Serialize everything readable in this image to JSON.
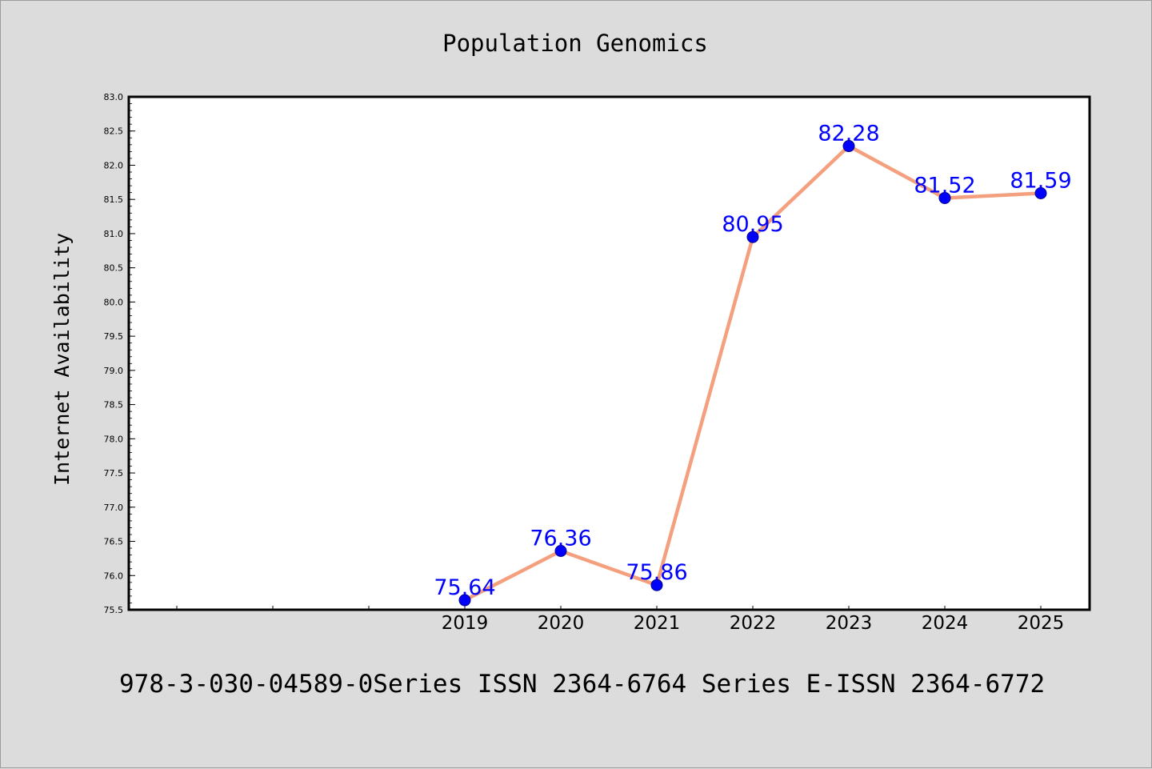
{
  "chart_data": {
    "type": "line",
    "title": "Population Genomics",
    "xlabel": "",
    "ylabel": "Internet Availability",
    "categories": [
      "2019",
      "2020",
      "2021",
      "2022",
      "2023",
      "2024",
      "2025"
    ],
    "values": [
      75.64,
      76.36,
      75.86,
      80.95,
      82.28,
      81.52,
      81.59
    ],
    "data_labels": [
      "75.64",
      "76.36",
      "75.86",
      "80.95",
      "82.28",
      "81.52",
      "81.59"
    ],
    "ylim": [
      75.5,
      83.0
    ],
    "yticks": [
      "75.5",
      "76.0",
      "76.5",
      "77.0",
      "77.5",
      "78.0",
      "78.5",
      "79.0",
      "79.5",
      "80.0",
      "80.5",
      "81.0",
      "81.5",
      "82.0",
      "82.5",
      "83.0"
    ],
    "grid": false,
    "legend": "none",
    "line_color": "#f4a07f",
    "marker_color": "#0000ff",
    "label_color": "#0000ff"
  },
  "footer": {
    "text": "978-3-030-04589-0Series ISSN 2364-6764 Series E-ISSN 2364-6772"
  }
}
